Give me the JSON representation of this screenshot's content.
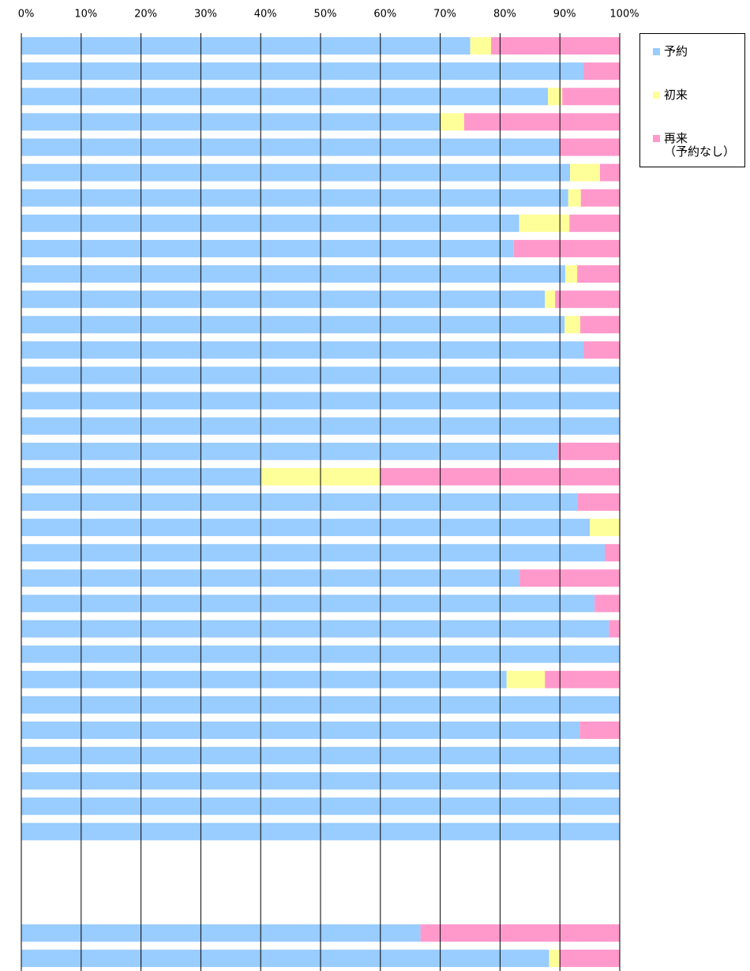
{
  "chart_data": {
    "type": "stacked-barh",
    "categories": [
      null,
      null,
      null,
      null,
      null,
      null,
      null,
      null,
      null,
      null,
      null,
      null,
      null,
      null,
      null,
      null,
      null,
      null,
      null,
      null,
      null,
      null,
      null,
      null,
      null,
      null,
      null,
      null,
      null,
      null,
      null,
      null,
      null,
      null,
      null,
      null,
      null
    ],
    "series": [
      {
        "name": "予約",
        "color": "#99ccff",
        "values": [
          75,
          94,
          88,
          70,
          90,
          91.7,
          91.4,
          83.2,
          82.3,
          90.9,
          87.5,
          90.8,
          94,
          100,
          100,
          100,
          89.6,
          40,
          92.9,
          95,
          97.5,
          83.2,
          95.8,
          98.2,
          100,
          81.1,
          100,
          93.3,
          100,
          100,
          100,
          100,
          null,
          null,
          null,
          66.7,
          88.2
        ]
      },
      {
        "name": "初来",
        "color": "#ffff99",
        "values": [
          3.5,
          0,
          2.4,
          4,
          0,
          5,
          2.1,
          8.4,
          0,
          2,
          1.7,
          2.6,
          0,
          0,
          0,
          0,
          0,
          20,
          0,
          5,
          0,
          0,
          0,
          0,
          0,
          6.4,
          0,
          0,
          0,
          0,
          0,
          0,
          null,
          null,
          null,
          0,
          1.8
        ]
      },
      {
        "name": "再来\n（予約なし）",
        "color": "#ff99cc",
        "values": [
          21.5,
          6,
          9.6,
          26,
          10,
          3.3,
          6.5,
          8.4,
          17.7,
          7.1,
          10.8,
          6.6,
          6,
          0,
          0,
          0,
          10.4,
          40,
          7.1,
          0,
          2.5,
          16.8,
          4.2,
          1.8,
          0,
          12.5,
          0,
          6.7,
          0,
          0,
          0,
          0,
          null,
          null,
          null,
          33.3,
          10
        ]
      }
    ],
    "xlim": [
      0,
      100
    ],
    "xticks": [
      {
        "value": 0,
        "label": "0%"
      },
      {
        "value": 10,
        "label": "10%"
      },
      {
        "value": 20,
        "label": "20%"
      },
      {
        "value": 30,
        "label": "30%"
      },
      {
        "value": 40,
        "label": "40%"
      },
      {
        "value": 50,
        "label": "50%"
      },
      {
        "value": 60,
        "label": "60%"
      },
      {
        "value": 70,
        "label": "70%"
      },
      {
        "value": 80,
        "label": "80%"
      },
      {
        "value": 90,
        "label": "90%"
      },
      {
        "value": 100,
        "label": "100%"
      }
    ],
    "grid": true,
    "legend": "right"
  }
}
